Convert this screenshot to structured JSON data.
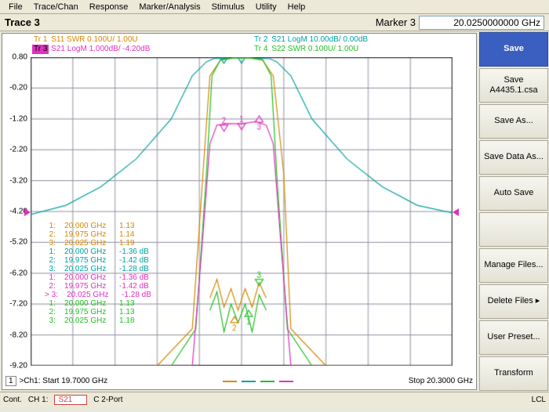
{
  "menu": {
    "items": [
      "File",
      "Trace/Chan",
      "Response",
      "Marker/Analysis",
      "Stimulus",
      "Utility",
      "Help"
    ]
  },
  "topbar": {
    "title": "Trace 3",
    "marker_label": "Marker 3",
    "marker_value": "20.0250000000 GHz"
  },
  "sidebar": {
    "buttons": [
      "Save",
      "Save A4435.1.csa",
      "Save As...",
      "Save Data As...",
      "Auto Save",
      "",
      "Manage Files...",
      "Delete Files  ▸",
      "User Preset...",
      "Transform"
    ]
  },
  "traces": {
    "tr1": {
      "tag": "Tr 1",
      "label": "S11 SWR 0.100U/  1.00U",
      "color": "#d48800"
    },
    "tr2": {
      "tag": "Tr 2",
      "label": "S21 LogM 10.00dB/  0.00dB",
      "color": "#00a0a0"
    },
    "tr3": {
      "tag": "Tr 3",
      "label": "S21 LogM 1.000dB/  -4.20dB",
      "color": "#e030c0",
      "active": true
    },
    "tr4": {
      "tag": "Tr 4",
      "label": "S22 SWR 0.100U/  1.00U",
      "color": "#20c020"
    }
  },
  "yaxis": {
    "ticks": [
      "0.80",
      "-0.20",
      "-1.20",
      "-2.20",
      "-3.20",
      "-4.20",
      "-5.20",
      "-6.20",
      "-7.20",
      "-8.20",
      "-9.20"
    ]
  },
  "xaxis": {
    "start_label": ">Ch1: Start  19.7000 GHz",
    "stop_label": "Stop  20.3000 GHz",
    "start": 19.7,
    "stop": 20.3
  },
  "chtag": "1",
  "statusbar": {
    "cont": "Cont.",
    "ch": "CH 1:",
    "sparam": "S21",
    "port": "C  2-Port",
    "lcl": "LCL"
  },
  "colors": {
    "grid": "#9090a0",
    "gridframe": "#404040",
    "bg": "#ffffff",
    "orange": "#d48800",
    "teal": "#00a0a0",
    "magenta": "#e030c0",
    "green": "#20c020"
  },
  "marker_table": {
    "groups": [
      {
        "color": "#d48800",
        "rows": [
          {
            "n": "1:",
            "f": "20.000 GHz",
            "v": "1.13"
          },
          {
            "n": "2:",
            "f": "19.975 GHz",
            "v": "1.14"
          },
          {
            "n": "3:",
            "f": "20.025 GHz",
            "v": "1.19"
          }
        ]
      },
      {
        "color": "#00a0a0",
        "rows": [
          {
            "n": "1:",
            "f": "20.000 GHz",
            "v": "-1.36 dB"
          },
          {
            "n": "2:",
            "f": "19.975 GHz",
            "v": "-1.42 dB"
          },
          {
            "n": "3:",
            "f": "20.025 GHz",
            "v": "-1.28 dB"
          }
        ]
      },
      {
        "color": "#e030c0",
        "rows": [
          {
            "n": "1:",
            "f": "20.000 GHz",
            "v": "-1.36 dB"
          },
          {
            "n": "2:",
            "f": "19.975 GHz",
            "v": "-1.42 dB"
          },
          {
            "n": "> 3:",
            "f": "20.025 GHz",
            "v": "-1.28 dB"
          }
        ]
      },
      {
        "color": "#20c020",
        "rows": [
          {
            "n": "1:",
            "f": "20.000 GHz",
            "v": "1.13"
          },
          {
            "n": "2:",
            "f": "19.975 GHz",
            "v": "1.13"
          },
          {
            "n": "3:",
            "f": "20.025 GHz",
            "v": "1.18"
          }
        ]
      }
    ]
  },
  "plot": {
    "ymin": -9.2,
    "ymax": 0.8,
    "teal_y_edges": -4.2,
    "teal_y_pass": 0.7,
    "orange_pts": [
      [
        19.7,
        -9.2
      ],
      [
        19.8,
        -9.2
      ],
      [
        19.88,
        -9.2
      ],
      [
        19.93,
        -8.0
      ],
      [
        19.945,
        -3.0
      ],
      [
        19.955,
        0.2
      ],
      [
        19.97,
        0.7
      ],
      [
        19.99,
        0.78
      ],
      [
        20.01,
        0.78
      ],
      [
        20.03,
        0.7
      ],
      [
        20.045,
        0.2
      ],
      [
        20.06,
        -3.0
      ],
      [
        20.07,
        -8.0
      ],
      [
        20.12,
        -9.2
      ],
      [
        20.3,
        -9.2
      ]
    ],
    "green_pts": [
      [
        19.7,
        -9.2
      ],
      [
        19.8,
        -9.2
      ],
      [
        19.9,
        -9.2
      ],
      [
        19.935,
        -8.0
      ],
      [
        19.95,
        -3.0
      ],
      [
        19.958,
        0.2
      ],
      [
        19.97,
        0.72
      ],
      [
        19.99,
        0.78
      ],
      [
        20.01,
        0.78
      ],
      [
        20.03,
        0.72
      ],
      [
        20.042,
        0.2
      ],
      [
        20.05,
        -3.0
      ],
      [
        20.065,
        -8.0
      ],
      [
        20.1,
        -9.2
      ],
      [
        20.3,
        -9.2
      ]
    ],
    "magenta_pts": [
      [
        19.7,
        -9.2
      ],
      [
        19.88,
        -9.2
      ],
      [
        19.93,
        -9.2
      ],
      [
        19.945,
        -5.0
      ],
      [
        19.955,
        -2.0
      ],
      [
        19.965,
        -1.4
      ],
      [
        19.98,
        -1.35
      ],
      [
        20.0,
        -1.36
      ],
      [
        20.02,
        -1.28
      ],
      [
        20.035,
        -1.4
      ],
      [
        20.045,
        -2.0
      ],
      [
        20.055,
        -5.0
      ],
      [
        20.07,
        -9.2
      ],
      [
        20.3,
        -9.2
      ]
    ],
    "teal_pts": [
      [
        19.7,
        -4.3
      ],
      [
        19.75,
        -4.0
      ],
      [
        19.8,
        -3.4
      ],
      [
        19.85,
        -2.5
      ],
      [
        19.9,
        -1.2
      ],
      [
        19.93,
        0.2
      ],
      [
        19.95,
        0.65
      ],
      [
        19.96,
        0.75
      ],
      [
        20.0,
        0.78
      ],
      [
        20.04,
        0.75
      ],
      [
        20.05,
        0.65
      ],
      [
        20.07,
        0.2
      ],
      [
        20.1,
        -1.2
      ],
      [
        20.15,
        -2.5
      ],
      [
        20.2,
        -3.4
      ],
      [
        20.25,
        -4.0
      ],
      [
        20.3,
        -4.25
      ]
    ],
    "oscillation_orange": [
      [
        19.955,
        -7.0
      ],
      [
        19.965,
        -6.4
      ],
      [
        19.975,
        -7.3
      ],
      [
        19.985,
        -6.7
      ],
      [
        19.995,
        -7.4
      ],
      [
        20.005,
        -6.7
      ],
      [
        20.015,
        -7.3
      ],
      [
        20.025,
        -6.5
      ],
      [
        20.035,
        -7.0
      ]
    ],
    "oscillation_green": [
      [
        19.955,
        -7.4
      ],
      [
        19.965,
        -6.8
      ],
      [
        19.975,
        -8.1
      ],
      [
        19.985,
        -7.2
      ],
      [
        19.995,
        -7.8
      ],
      [
        20.005,
        -7.2
      ],
      [
        20.015,
        -8.1
      ],
      [
        20.025,
        -6.9
      ],
      [
        20.035,
        -7.4
      ]
    ]
  }
}
